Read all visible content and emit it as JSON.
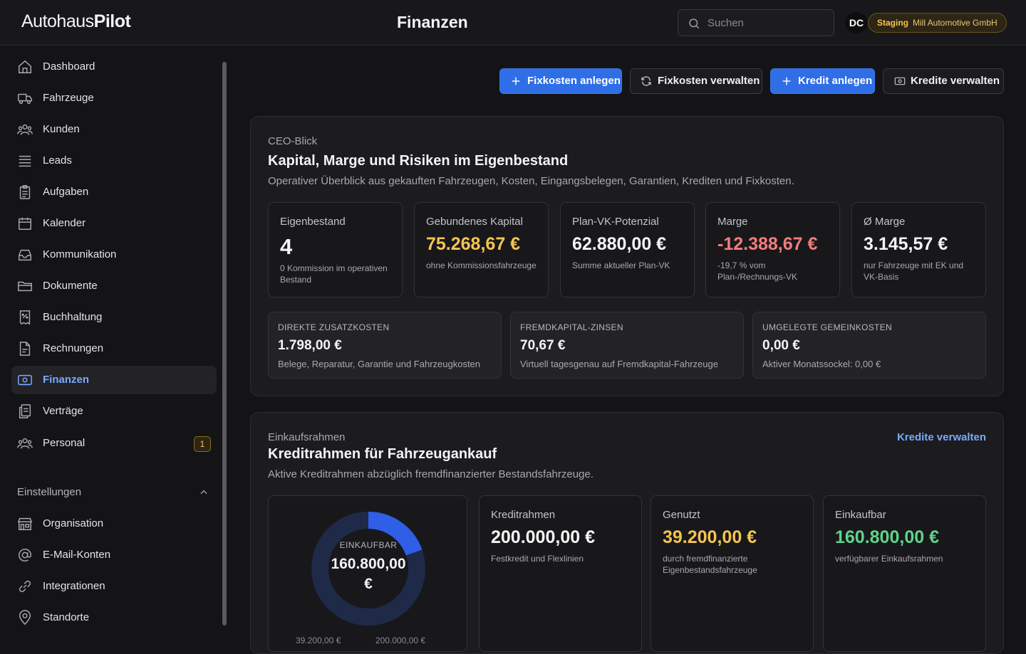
{
  "header": {
    "logo_part1": "Autohaus",
    "logo_part2": "Pilot",
    "title": "Finanzen",
    "search_placeholder": "Suchen",
    "avatar_initials": "DC",
    "env_tag": "Staging",
    "org_name": "Mill Automotive GmbH"
  },
  "sidebar": {
    "items": [
      {
        "label": "Dashboard",
        "icon": "home-icon"
      },
      {
        "label": "Fahrzeuge",
        "icon": "truck-icon"
      },
      {
        "label": "Kunden",
        "icon": "users-icon"
      },
      {
        "label": "Leads",
        "icon": "list-icon"
      },
      {
        "label": "Aufgaben",
        "icon": "clipboard-icon"
      },
      {
        "label": "Kalender",
        "icon": "calendar-icon"
      },
      {
        "label": "Kommunikation",
        "icon": "inbox-icon"
      },
      {
        "label": "Dokumente",
        "icon": "folder-icon"
      },
      {
        "label": "Buchhaltung",
        "icon": "receipt-icon"
      },
      {
        "label": "Rechnungen",
        "icon": "file-icon"
      },
      {
        "label": "Finanzen",
        "icon": "banknote-icon",
        "active": true
      },
      {
        "label": "Verträge",
        "icon": "contract-icon"
      },
      {
        "label": "Personal",
        "icon": "people-icon",
        "badge": "1"
      }
    ],
    "settings_heading": "Einstellungen",
    "settings_items": [
      {
        "label": "Organisation",
        "icon": "building-icon"
      },
      {
        "label": "E-Mail-Konten",
        "icon": "at-icon"
      },
      {
        "label": "Integrationen",
        "icon": "link-icon"
      },
      {
        "label": "Standorte",
        "icon": "map-pin-icon"
      }
    ]
  },
  "toolbar": {
    "add_fixed_costs": "Fixkosten anlegen",
    "manage_fixed_costs": "Fixkosten verwalten",
    "add_credit": "Kredit anlegen",
    "manage_credits": "Kredite verwalten"
  },
  "ceo": {
    "eyebrow": "CEO-Blick",
    "title": "Kapital, Marge und Risiken im Eigenbestand",
    "description": "Operativer Überblick aus gekauften Fahrzeugen, Kosten, Eingangsbelegen, Garantien, Krediten und Fixkosten.",
    "kpis": [
      {
        "label": "Eigenbestand",
        "value": "4",
        "sub": "0 Kommission im operativen Bestand"
      },
      {
        "label": "Gebundenes Kapital",
        "value": "75.268,67 €",
        "sub": "ohne Kommissionsfahrzeuge"
      },
      {
        "label": "Plan-VK-Potenzial",
        "value": "62.880,00 €",
        "sub": "Summe aktueller Plan-VK"
      },
      {
        "label": "Marge",
        "value": "-12.388,67 €",
        "sub": "-19,7 % vom Plan-/Rechnungs-VK"
      },
      {
        "label": "Ø Marge",
        "value": "3.145,57 €",
        "sub": "nur Fahrzeuge mit EK und VK-Basis"
      }
    ],
    "minis": [
      {
        "label": "DIREKTE ZUSATZKOSTEN",
        "value": "1.798,00 €",
        "sub": "Belege, Reparatur, Garantie und Fahrzeugkosten"
      },
      {
        "label": "FREMDKAPITAL-ZINSEN",
        "value": "70,67 €",
        "sub": "Virtuell tagesgenau auf Fremdkapital-Fahrzeuge"
      },
      {
        "label": "UMGELEGTE GEMEINKOSTEN",
        "value": "0,00 €",
        "sub": "Aktiver Monatssockel: 0,00 €"
      }
    ]
  },
  "credit": {
    "eyebrow": "Einkaufsrahmen",
    "title": "Kreditrahmen für Fahrzeugankauf",
    "description": "Aktive Kreditrahmen abzüglich fremdfinanzierter Bestandsfahrzeuge.",
    "link": "Kredite verwalten",
    "donut_label": "EINKAUFBAR",
    "donut_value": "160.800,00 €",
    "donut_used_fraction": 0.196,
    "donut_legend_left": "39.200,00 €",
    "donut_legend_right": "200.000,00 €",
    "cards": [
      {
        "label": "Kreditrahmen",
        "value": "200.000,00 €",
        "sub": "Festkredit und Flexlinien"
      },
      {
        "label": "Genutzt",
        "value": "39.200,00 €",
        "sub": "durch fremdfinanzierte Eigenbestandsfahrzeuge"
      },
      {
        "label": "Einkaufbar",
        "value": "160.800,00 €",
        "sub": "verfügbarer Einkaufsrahmen"
      }
    ]
  },
  "colors": {
    "accent": "#2f6ee6",
    "warning": "#f5c451",
    "negative": "#f47c7c",
    "positive": "#5fd38a"
  }
}
